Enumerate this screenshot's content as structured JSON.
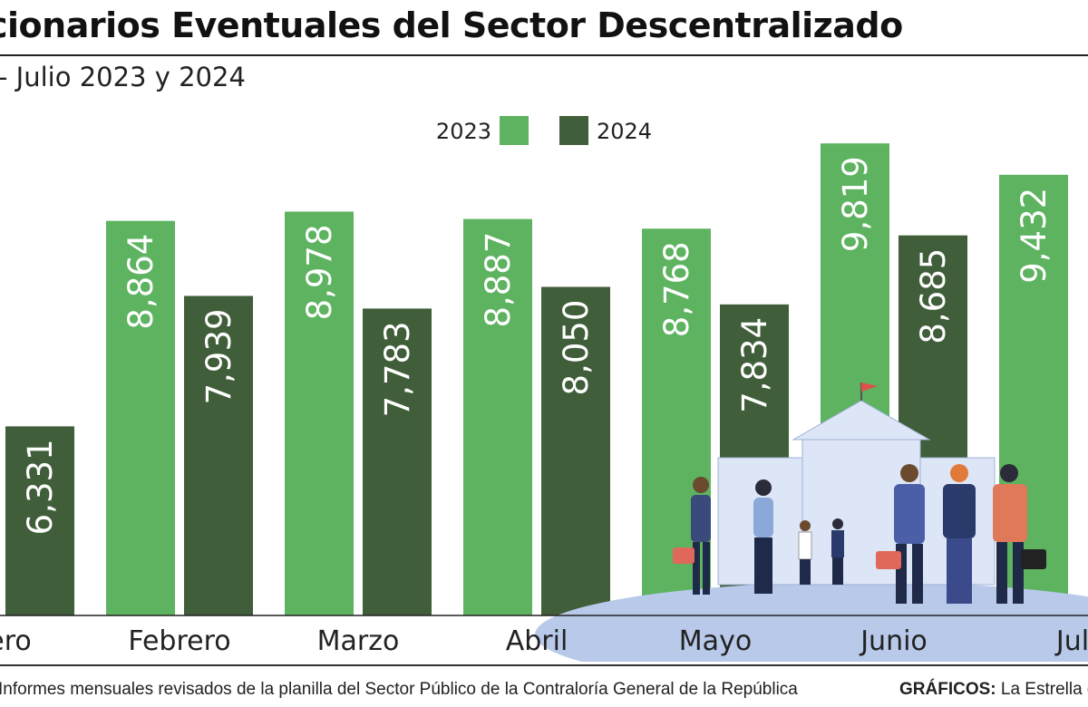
{
  "header": {
    "title": "cionarios Eventuales del Sector Descentralizado",
    "subtitle": "- Julio 2023 y 2024"
  },
  "footer": {
    "source": "Informes mensuales revisados de la planilla del Sector Público de la Contraloría General de la República",
    "credit_label": "GRÁFICOS:",
    "credit_text": "La Estrella d"
  },
  "colors": {
    "series_2023": "#5db35f",
    "series_2024": "#3f5e39",
    "illustration_ground": "#b8c9ea",
    "building": "#dde6f6"
  },
  "illustration": {
    "description_icon": "office-building-with-people-icon"
  },
  "chart_data": {
    "type": "bar",
    "categories": [
      "nero",
      "Febrero",
      "Marzo",
      "Abril",
      "Mayo",
      "Junio",
      "Jul"
    ],
    "series": [
      {
        "name": "2023",
        "values": [
          null,
          8864,
          8978,
          8887,
          8768,
          9819,
          9432
        ],
        "labels": [
          "",
          "8,864",
          "8,978",
          "8,887",
          "8,768",
          "9,819",
          "9,432"
        ]
      },
      {
        "name": "2024",
        "values": [
          6331,
          7939,
          7783,
          8050,
          7834,
          8685,
          null
        ],
        "labels": [
          "6,331",
          "7,939",
          "7,783",
          "8,050",
          "7,834",
          "8,685",
          ""
        ]
      }
    ],
    "ylim": [
      4000,
      10200
    ],
    "legend": "top-center",
    "grid": false,
    "xlabel": "",
    "ylabel": ""
  }
}
